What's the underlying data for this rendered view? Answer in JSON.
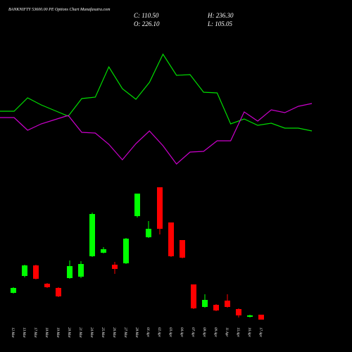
{
  "chart_data": {
    "type": "candlestick",
    "title": "BANKNIFTY 53600.00 PE Options Chart Munafasutra.com",
    "stats": [
      "C: 110.50",
      "H: 236.30",
      "O: 226.10",
      "L: 105.05"
    ],
    "categories": [
      "12 Mar",
      "13 Mar",
      "17 Mar",
      "18 Mar",
      "19 Mar",
      "20 Mar",
      "21 Mar",
      "24 Mar",
      "25 Mar",
      "26 Mar",
      "27 Mar",
      "28 Mar",
      "01 Apr",
      "02 Apr",
      "03 Apr",
      "04 Apr",
      "07 Apr",
      "08 Apr",
      "09 Apr",
      "11 Apr",
      "15 Apr",
      "16 Apr",
      "17 Apr"
    ],
    "open": [
      88,
      136,
      166,
      114,
      102,
      130,
      134,
      192,
      202,
      168,
      172,
      306,
      246,
      388,
      288,
      238,
      112,
      48,
      54,
      66,
      42,
      20,
      26
    ],
    "high": [
      104,
      168,
      168,
      116,
      104,
      180,
      178,
      316,
      218,
      176,
      244,
      370,
      292,
      388,
      288,
      238,
      112,
      84,
      56,
      84,
      44,
      26,
      26
    ],
    "low": [
      86,
      132,
      126,
      102,
      76,
      128,
      130,
      190,
      200,
      142,
      170,
      302,
      244,
      254,
      190,
      186,
      42,
      46,
      36,
      46,
      18,
      18,
      12
    ],
    "close": [
      102,
      166,
      128,
      104,
      78,
      164,
      170,
      312,
      212,
      156,
      242,
      370,
      270,
      270,
      192,
      188,
      44,
      68,
      38,
      48,
      24,
      24,
      12
    ],
    "up_color": "#00ff00",
    "down_color": "#ff0000",
    "ylim": [
      0,
      400
    ],
    "indicators": [
      {
        "color": "#00dd00",
        "values": [
          92,
          111,
          101,
          93,
          85,
          110,
          112,
          155,
          124,
          109,
          133,
          173,
          143,
          144,
          119,
          118,
          74,
          81,
          72,
          75,
          68,
          68,
          64
        ]
      },
      {
        "color": "#cc00cc",
        "values": [
          83,
          65,
          74,
          80,
          86,
          62,
          61,
          45,
          23,
          46,
          64,
          43,
          17,
          34,
          35,
          50,
          50,
          91,
          78,
          94,
          90,
          99,
          103
        ]
      }
    ],
    "indicator_ylim": [
      0,
      250
    ]
  }
}
